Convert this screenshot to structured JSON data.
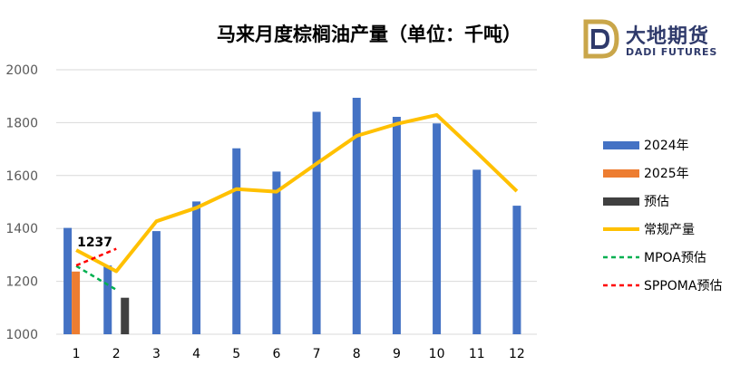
{
  "chart_data": {
    "type": "bar",
    "title": "马来月度棕榈油产量（单位：千吨）",
    "categories": [
      "1",
      "2",
      "3",
      "4",
      "5",
      "6",
      "7",
      "8",
      "9",
      "10",
      "11",
      "12"
    ],
    "ylim": [
      1000,
      2000
    ],
    "yticks": [
      1000,
      1200,
      1400,
      1600,
      1800,
      2000
    ],
    "grid": true,
    "legend_position": "right",
    "series": [
      {
        "name": "2024年",
        "type": "bar",
        "color": "#4472C4",
        "values": [
          1402,
          1260,
          1390,
          1502,
          1703,
          1615,
          1841,
          1894,
          1822,
          1797,
          1622,
          1486
        ]
      },
      {
        "name": "2025年",
        "type": "bar",
        "color": "#ED7D31",
        "values": [
          1237,
          null,
          null,
          null,
          null,
          null,
          null,
          null,
          null,
          null,
          null,
          null
        ]
      },
      {
        "name": "预估",
        "type": "bar",
        "color": "#404040",
        "values": [
          null,
          1138,
          null,
          null,
          null,
          null,
          null,
          null,
          null,
          null,
          null,
          null
        ]
      },
      {
        "name": "常规产量",
        "type": "line",
        "color": "#FFC000",
        "values": [
          1318,
          1238,
          1427,
          1478,
          1549,
          1539,
          1645,
          1750,
          1795,
          1829,
          1687,
          1541
        ]
      },
      {
        "name": "MPOA预估",
        "type": "dashed-line",
        "color": "#00B050",
        "values": [
          1258,
          1168,
          null,
          null,
          null,
          null,
          null,
          null,
          null,
          null,
          null,
          null
        ]
      },
      {
        "name": "SPPOMA预估",
        "type": "dashed-line",
        "color": "#FF0000",
        "values": [
          1260,
          1323,
          null,
          null,
          null,
          null,
          null,
          null,
          null,
          null,
          null,
          null
        ]
      }
    ],
    "annotations": [
      {
        "text": "1237",
        "category": "1"
      }
    ]
  },
  "logo": {
    "cn": "大地期货",
    "en": "DADI FUTURES"
  }
}
